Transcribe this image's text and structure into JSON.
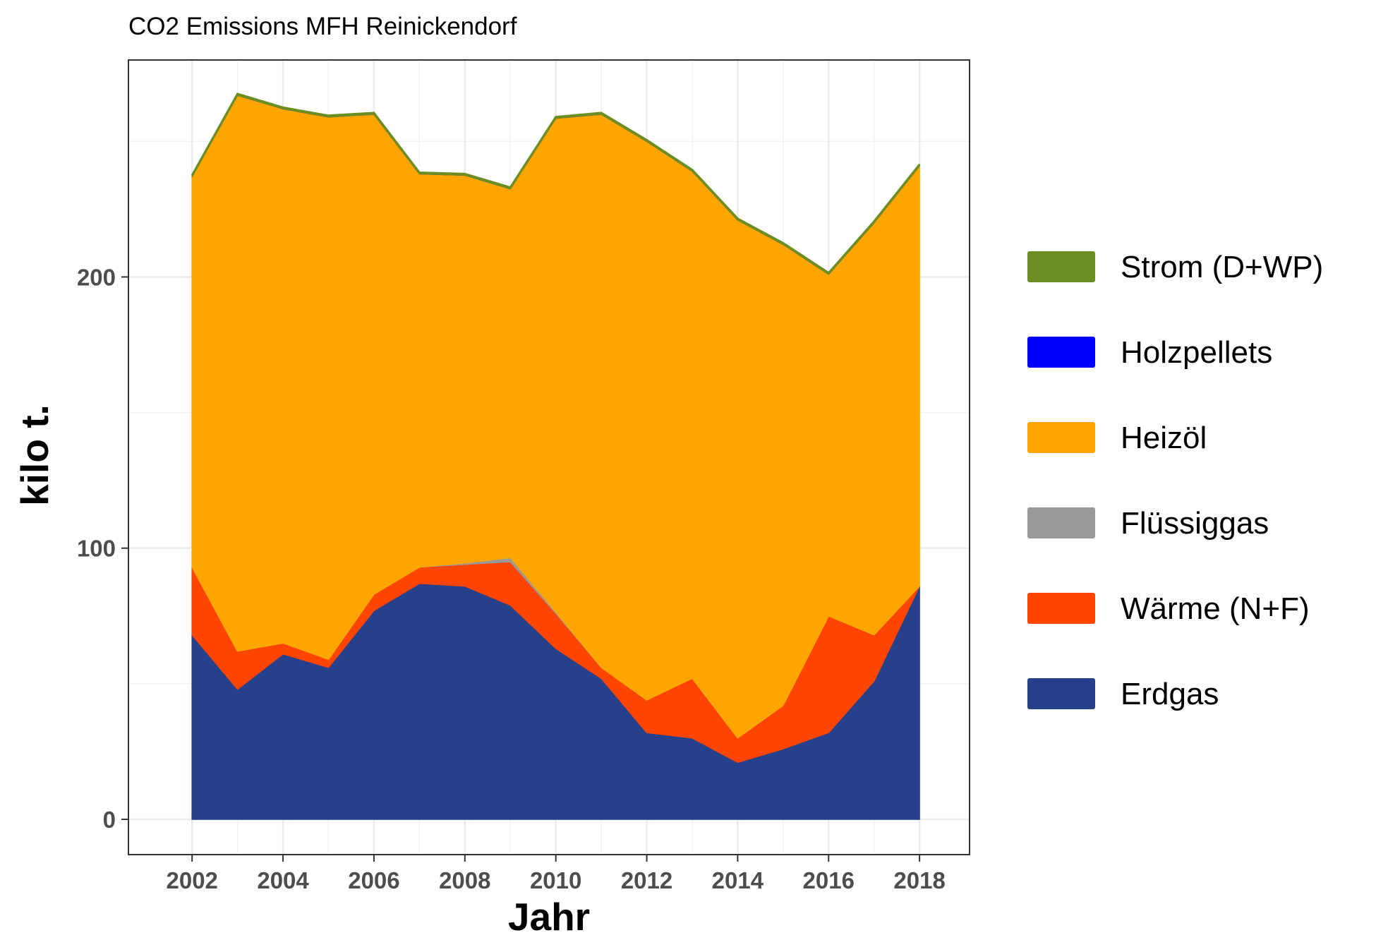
{
  "chart_data": {
    "type": "area",
    "stacked": true,
    "title": "CO2 Emissions MFH Reinickendorf",
    "xlabel": "Jahr",
    "ylabel": "kilo t.",
    "x": [
      2002,
      2003,
      2004,
      2005,
      2006,
      2007,
      2008,
      2009,
      2010,
      2011,
      2012,
      2013,
      2014,
      2015,
      2016,
      2017,
      2018
    ],
    "xlim": [
      2000.6,
      2019.1
    ],
    "ylim": [
      -13,
      280
    ],
    "x_ticks": [
      "2002",
      "2004",
      "2006",
      "2008",
      "2010",
      "2012",
      "2014",
      "2016",
      "2018"
    ],
    "y_ticks": [
      "0",
      "100",
      "200"
    ],
    "grid": true,
    "legend_position": "right",
    "series": [
      {
        "name": "Erdgas",
        "color": "#27408B",
        "values": [
          68,
          48,
          61,
          56,
          77,
          87,
          86,
          79,
          63,
          52,
          32,
          30,
          21,
          26,
          32,
          51,
          86
        ]
      },
      {
        "name": "Wärme (N+F)",
        "color": "#FF4500",
        "values": [
          25,
          14,
          4,
          3,
          6,
          6,
          8,
          16,
          13,
          4,
          12,
          22,
          9,
          16,
          43,
          17,
          0
        ]
      },
      {
        "name": "Flüssiggas",
        "color": "#999999",
        "values": [
          0,
          0,
          0,
          0,
          0,
          0,
          0.5,
          1.5,
          0.5,
          0,
          0,
          0,
          0,
          0,
          0,
          0,
          0
        ]
      },
      {
        "name": "Heizöl",
        "color": "#FFA500",
        "values": [
          144,
          205,
          197,
          200,
          177,
          145,
          143,
          136,
          182,
          204,
          206,
          187,
          191,
          170,
          126,
          152,
          155
        ]
      },
      {
        "name": "Holzpellets",
        "color": "#0000FF",
        "values": [
          0,
          0,
          0,
          0,
          0,
          0,
          0,
          0,
          0,
          0,
          0,
          0,
          0,
          0,
          0,
          0,
          0
        ]
      },
      {
        "name": "Strom (D+WP)",
        "color": "#6B8E23",
        "values": [
          0.5,
          0.5,
          0.5,
          0.5,
          0.5,
          0.5,
          0.5,
          0.5,
          0.5,
          0.5,
          0.5,
          0.5,
          0.5,
          0.5,
          0.5,
          0.5,
          0.5
        ]
      }
    ],
    "legend_order": [
      "Strom (D+WP)",
      "Holzpellets",
      "Heizöl",
      "Flüssiggas",
      "Wärme (N+F)",
      "Erdgas"
    ]
  },
  "colors": {
    "panel_border": "#333333",
    "grid_major": "#ebebeb",
    "grid_minor": "#f3f3f3",
    "tick_text": "#4d4d4d"
  }
}
